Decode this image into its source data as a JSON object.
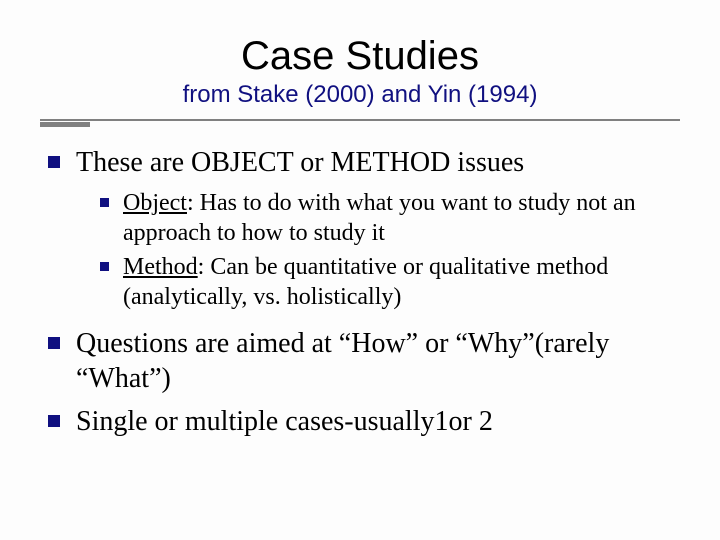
{
  "title": "Case Studies",
  "subtitle": "from Stake (2000) and Yin (1994)",
  "colors": {
    "bullet": "#101080",
    "subtitle": "#101080",
    "underline": "#808080",
    "background": "#fdfdfd",
    "text": "#000000"
  },
  "typography": {
    "title_font": "Verdana",
    "title_size_pt": 40,
    "subtitle_size_pt": 24,
    "body_font": "Times New Roman",
    "lvl1_size_pt": 28,
    "lvl2_size_pt": 24
  },
  "bullets": [
    {
      "text": "These are OBJECT or METHOD issues",
      "children": [
        {
          "lead": "Object",
          "rest": ": Has to do with what you want to study not an approach to how to study it"
        },
        {
          "lead": "Method",
          "rest": ": Can be quantitative or qualitative method (analytically, vs. holistically)"
        }
      ]
    },
    {
      "text": "Questions are aimed at “How” or “Why”(rarely “What”)"
    },
    {
      "text": "Single or multiple cases-usually1or 2"
    }
  ]
}
